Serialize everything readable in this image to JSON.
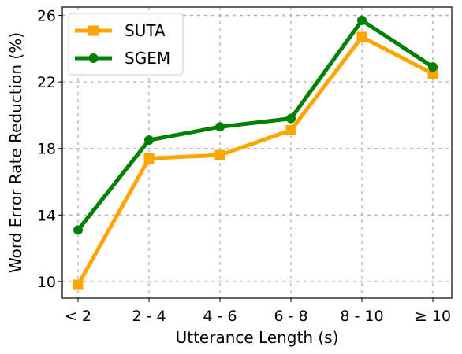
{
  "chart_data": {
    "type": "line",
    "title": "",
    "xlabel": "Utterance Length (s)",
    "ylabel": "Word Error Rate Reduction (%)",
    "categories": [
      "< 2",
      "2 - 4",
      "4 - 6",
      "6 - 8",
      "8 - 10",
      "≥ 10"
    ],
    "yticks": [
      "10",
      "14",
      "18",
      "22",
      "26"
    ],
    "ylim": [
      9.0,
      26.5
    ],
    "grid": true,
    "legend_position": "top-left",
    "series": [
      {
        "name": "SUTA",
        "color": "#FFA500",
        "marker": "square",
        "values": [
          9.8,
          17.4,
          17.6,
          19.1,
          24.7,
          22.5
        ]
      },
      {
        "name": "SGEM",
        "color": "#008000",
        "marker": "circle",
        "values": [
          13.1,
          18.5,
          19.3,
          19.8,
          25.7,
          22.9
        ]
      }
    ]
  }
}
